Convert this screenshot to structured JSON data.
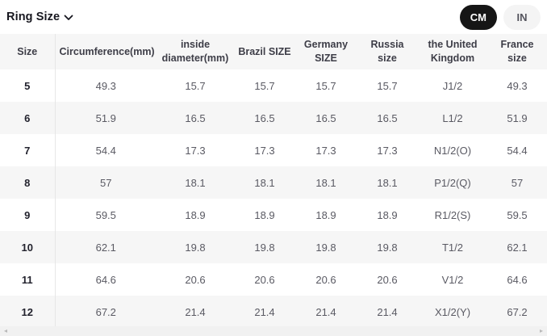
{
  "toolbar": {
    "dropdown_label": "Ring Size",
    "unit_toggle": {
      "active": "CM",
      "options": [
        "CM",
        "IN"
      ]
    }
  },
  "table": {
    "columns": [
      "Size",
      "Circumference(mm)",
      "inside diameter(mm)",
      "Brazil SIZE",
      "Germany SIZE",
      "Russia size",
      "the United Kingdom",
      "France size"
    ],
    "rows": [
      [
        "5",
        "49.3",
        "15.7",
        "15.7",
        "15.7",
        "15.7",
        "J1/2",
        "49.3"
      ],
      [
        "6",
        "51.9",
        "16.5",
        "16.5",
        "16.5",
        "16.5",
        "L1/2",
        "51.9"
      ],
      [
        "7",
        "54.4",
        "17.3",
        "17.3",
        "17.3",
        "17.3",
        "N1/2(O)",
        "54.4"
      ],
      [
        "8",
        "57",
        "18.1",
        "18.1",
        "18.1",
        "18.1",
        "P1/2(Q)",
        "57"
      ],
      [
        "9",
        "59.5",
        "18.9",
        "18.9",
        "18.9",
        "18.9",
        "R1/2(S)",
        "59.5"
      ],
      [
        "10",
        "62.1",
        "19.8",
        "19.8",
        "19.8",
        "19.8",
        "T1/2",
        "62.1"
      ],
      [
        "11",
        "64.6",
        "20.6",
        "20.6",
        "20.6",
        "20.6",
        "V1/2",
        "64.6"
      ],
      [
        "12",
        "67.2",
        "21.4",
        "21.4",
        "21.4",
        "21.4",
        "X1/2(Y)",
        "67.2"
      ]
    ]
  },
  "scrollbar": {
    "left_arrow": "◂",
    "right_arrow": "▸"
  },
  "colors": {
    "active_pill_bg": "#161616",
    "inactive_pill_bg": "#f4f4f4",
    "stripe_bg": "#f6f6f6",
    "header_bg": "#f6f6f6",
    "text_primary": "#23232e",
    "text_secondary": "#5a5a63"
  }
}
